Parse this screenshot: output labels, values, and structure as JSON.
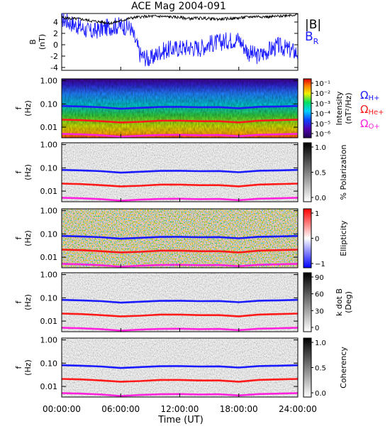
{
  "title": "ACE Mag 2004-091",
  "xaxis": {
    "label": "Time (UT)",
    "ticks": [
      "00:00:00",
      "06:00:00",
      "12:00:00",
      "18:00:00",
      "24:00:00"
    ],
    "tick_hours": [
      0,
      6,
      12,
      18,
      24
    ]
  },
  "freq_ticks": [
    "1.00",
    "0.10",
    "0.01"
  ],
  "freq_tick_values": [
    1.0,
    0.1,
    0.01
  ],
  "freq_ylabel": [
    "f",
    "(Hz)"
  ],
  "colors": {
    "B_total": "#000000",
    "B_R": "#1a1aff",
    "proton": "#1a1aff",
    "helium": "#ff1a1a",
    "oxygen": "#ff22dd"
  },
  "chart_data": [
    {
      "type": "line",
      "panel": "B-field",
      "ylabel": [
        "B",
        "(nT)"
      ],
      "ylim": [
        -4.5,
        5.5
      ],
      "yticks": [
        "4",
        "2",
        "0",
        "-2",
        "-4"
      ],
      "ytick_values": [
        4,
        2,
        0,
        -2,
        -4
      ],
      "legend": [
        {
          "label": "|B|",
          "color": "#000000"
        },
        {
          "label": "B",
          "sub": "R",
          "color": "#1a1aff"
        }
      ],
      "x_hours": [
        0,
        1,
        2,
        3,
        4,
        5,
        6,
        7,
        8,
        9,
        10,
        11,
        12,
        13,
        14,
        15,
        16,
        17,
        18,
        19,
        20,
        21,
        22,
        23,
        24
      ],
      "series": [
        {
          "name": "|B|",
          "values": [
            4.8,
            4.6,
            4.5,
            4.2,
            4.0,
            3.8,
            4.2,
            4.7,
            4.9,
            5.0,
            5.0,
            4.9,
            4.8,
            4.6,
            4.7,
            4.6,
            4.5,
            4.6,
            4.7,
            4.9,
            5.0,
            4.9,
            5.0,
            5.2,
            5.3
          ]
        },
        {
          "name": "B_R",
          "values": [
            4.6,
            3.8,
            3.0,
            2.2,
            2.8,
            3.2,
            3.4,
            3.0,
            -1.8,
            -2.6,
            -1.2,
            -0.8,
            -0.6,
            -0.4,
            -0.6,
            0.2,
            0.4,
            0.8,
            1.0,
            -1.4,
            -2.0,
            -1.0,
            -0.2,
            -0.8,
            -1.4
          ]
        }
      ]
    },
    {
      "type": "heatmap",
      "panel": "Intensity",
      "colorbar_label": [
        "Intensity",
        "(nT²/Hz)"
      ],
      "colorbar_ticks": [
        "10⁻¹",
        "10⁻²",
        "10⁻³",
        "10⁻⁴",
        "10⁻⁵",
        "10⁻⁶"
      ],
      "ion_labels": [
        {
          "sym": "Ω",
          "sub": "H+",
          "color": "#1a1aff"
        },
        {
          "sym": "Ω",
          "sub": "He+",
          "color": "#ff1a1a"
        },
        {
          "sym": "Ω",
          "sub": "O+",
          "color": "#ff22dd"
        }
      ]
    },
    {
      "type": "heatmap",
      "panel": "Polarization",
      "colorbar_label": [
        "% Polarization"
      ],
      "colorbar_ticks": [
        "1.0",
        "0.5",
        "0.0"
      ]
    },
    {
      "type": "heatmap",
      "panel": "Ellipticity",
      "colorbar_label": [
        "Ellipticity"
      ],
      "colorbar_ticks": [
        "1",
        "0",
        "−1"
      ]
    },
    {
      "type": "heatmap",
      "panel": "k dot B",
      "colorbar_label": [
        "k dot B",
        "(Deg)"
      ],
      "colorbar_ticks": [
        "90",
        "60",
        "30",
        "0"
      ]
    },
    {
      "type": "heatmap",
      "panel": "Coherency",
      "colorbar_label": [
        "Coherency"
      ],
      "colorbar_ticks": [
        "1.0",
        "0.5",
        "0.0"
      ]
    }
  ],
  "gyrofrequency_lines": {
    "x_hours": [
      0,
      2,
      4,
      6,
      8,
      10,
      12,
      14,
      16,
      18,
      20,
      22,
      24
    ],
    "proton_hz": [
      0.082,
      0.078,
      0.072,
      0.062,
      0.068,
      0.074,
      0.075,
      0.072,
      0.073,
      0.065,
      0.075,
      0.078,
      0.082
    ],
    "helium_hz": [
      0.021,
      0.02,
      0.018,
      0.016,
      0.017,
      0.019,
      0.019,
      0.018,
      0.018,
      0.016,
      0.019,
      0.02,
      0.021
    ],
    "oxygen_hz": [
      0.0052,
      0.0049,
      0.0045,
      0.0039,
      0.0043,
      0.0046,
      0.0047,
      0.0045,
      0.0046,
      0.0041,
      0.0047,
      0.0049,
      0.0052
    ]
  }
}
